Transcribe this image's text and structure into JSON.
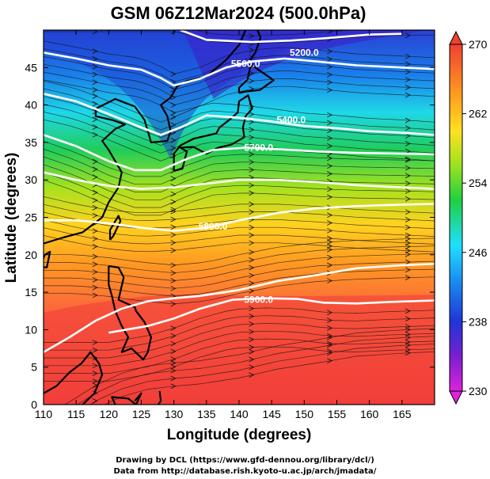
{
  "chart_data": {
    "type": "heatmap",
    "title": "GSM 06Z12Mar2024 (500.0hPa)",
    "xlabel": "Longitude (degrees)",
    "ylabel": "Latitude  (degrees)",
    "xlim": [
      110,
      170
    ],
    "ylim": [
      0,
      50
    ],
    "x_ticks": [
      110,
      115,
      120,
      125,
      130,
      135,
      140,
      145,
      150,
      155,
      160,
      165
    ],
    "y_ticks": [
      0,
      5,
      10,
      15,
      20,
      25,
      30,
      35,
      40,
      45
    ],
    "colorbar": {
      "min": 230,
      "max": 270,
      "ticks": [
        230,
        238,
        246,
        254,
        262,
        270
      ]
    },
    "contours": [
      {
        "label": "5200.0",
        "lon": 150,
        "lat": 47,
        "points": [
          [
            131,
            50
          ],
          [
            135,
            48.7
          ],
          [
            142,
            48.4
          ],
          [
            148,
            48.6
          ],
          [
            153,
            48.9
          ],
          [
            160,
            49.4
          ],
          [
            165,
            49.5
          ]
        ]
      },
      {
        "label": "5500.0",
        "lon": 141,
        "lat": 45.5,
        "points": [
          [
            110,
            47
          ],
          [
            115,
            46.2
          ],
          [
            120,
            45.3
          ],
          [
            125,
            44.7
          ],
          [
            128,
            43.6
          ],
          [
            130,
            42.6
          ],
          [
            134,
            43.5
          ],
          [
            138,
            45
          ],
          [
            142,
            45.8
          ],
          [
            147,
            46.2
          ],
          [
            152,
            45.8
          ],
          [
            158,
            45.3
          ],
          [
            165,
            45
          ],
          [
            170,
            44.8
          ]
        ]
      },
      {
        "label": "5400.0",
        "lon": 148,
        "lat": 38,
        "points": [
          [
            110,
            41.5
          ],
          [
            115,
            40.5
          ],
          [
            120,
            38.8
          ],
          [
            125,
            37
          ],
          [
            128,
            36
          ],
          [
            131,
            37
          ],
          [
            135,
            38.6
          ],
          [
            140,
            38.3
          ],
          [
            145,
            37.8
          ],
          [
            150,
            37.2
          ],
          [
            155,
            36.9
          ],
          [
            160,
            36.5
          ],
          [
            165,
            36.3
          ],
          [
            170,
            36
          ]
        ]
      },
      {
        "label": "5700.0",
        "lon": 143,
        "lat": 34.3,
        "points": [
          [
            110,
            36
          ],
          [
            115,
            34.5
          ],
          [
            120,
            32.5
          ],
          [
            124,
            31.3
          ],
          [
            128,
            31.3
          ],
          [
            132,
            32.8
          ],
          [
            136,
            34
          ],
          [
            141,
            34.3
          ],
          [
            146,
            34.1
          ],
          [
            152,
            33.8
          ],
          [
            158,
            33.6
          ],
          [
            165,
            33.5
          ],
          [
            170,
            33.4
          ]
        ]
      },
      {
        "label": "",
        "lon": 0,
        "lat": 0,
        "points": [
          [
            110,
            31
          ],
          [
            115,
            30
          ],
          [
            120,
            29.2
          ],
          [
            125,
            28.8
          ],
          [
            130,
            29
          ],
          [
            135,
            29.5
          ],
          [
            140,
            30
          ],
          [
            146,
            30
          ],
          [
            152,
            29.7
          ],
          [
            158,
            29.3
          ],
          [
            165,
            29
          ],
          [
            170,
            28.8
          ]
        ]
      },
      {
        "label": "5800.0",
        "lon": 136,
        "lat": 23.8,
        "points": [
          [
            110,
            24.6
          ],
          [
            115,
            24.6
          ],
          [
            120,
            24.2
          ],
          [
            125,
            23.6
          ],
          [
            130,
            23.2
          ],
          [
            135,
            23.6
          ],
          [
            140,
            24.6
          ],
          [
            146,
            25.6
          ],
          [
            152,
            26.2
          ],
          [
            158,
            26.5
          ],
          [
            165,
            26.7
          ],
          [
            170,
            26.8
          ]
        ]
      },
      {
        "label": "5900.0",
        "lon": 143,
        "lat": 14,
        "points": [
          [
            120,
            9.6
          ],
          [
            126,
            10.5
          ],
          [
            130,
            11.5
          ],
          [
            134,
            12.8
          ],
          [
            139,
            14
          ],
          [
            144,
            14.2
          ],
          [
            149,
            14.1
          ],
          [
            153,
            13.6
          ],
          [
            158,
            13.5
          ],
          [
            163,
            13.7
          ],
          [
            170,
            13.9
          ]
        ]
      },
      {
        "label": "",
        "lon": 0,
        "lat": 0,
        "points": [
          [
            110,
            7
          ],
          [
            114,
            9
          ],
          [
            118,
            11.2
          ],
          [
            122,
            12.8
          ],
          [
            126,
            13.8
          ],
          [
            130,
            14.2
          ],
          [
            134,
            14.5
          ],
          [
            140,
            15.3
          ],
          [
            146,
            16.5
          ],
          [
            152,
            17.3
          ],
          [
            158,
            18.2
          ],
          [
            165,
            18.6
          ],
          [
            170,
            18.8
          ]
        ]
      }
    ]
  }
}
